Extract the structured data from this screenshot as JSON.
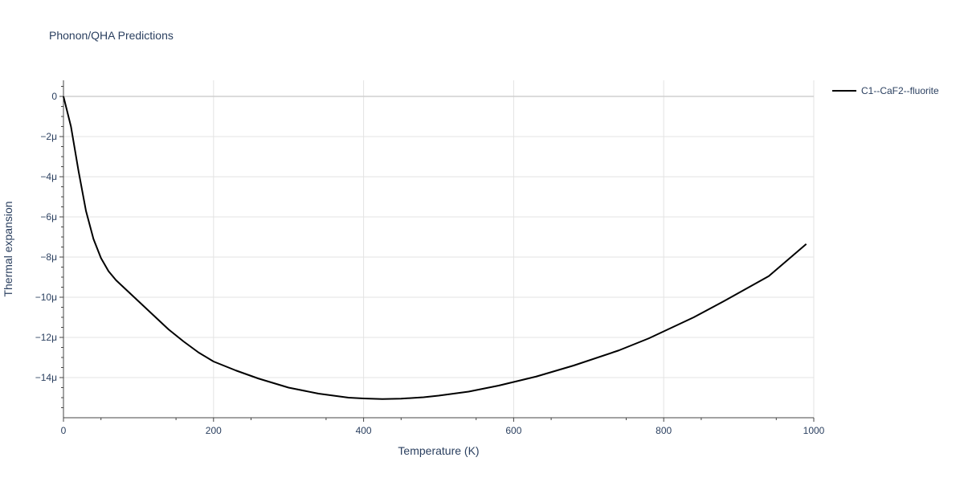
{
  "chart_data": {
    "type": "line",
    "title": "Phonon/QHA Predictions",
    "xlabel": "Temperature (K)",
    "ylabel": "Thermal expansion",
    "xlim": [
      0,
      1000
    ],
    "ylim": [
      -16,
      0.8
    ],
    "x_ticks": [
      0,
      200,
      400,
      600,
      800,
      1000
    ],
    "x_tick_labels": [
      "0",
      "200",
      "400",
      "600",
      "800",
      "1000"
    ],
    "y_ticks": [
      0,
      -2,
      -4,
      -6,
      -8,
      -10,
      -12,
      -14
    ],
    "y_tick_labels": [
      "0",
      "−2μ",
      "−4μ",
      "−6μ",
      "−8μ",
      "−10μ",
      "−12μ",
      "−14μ"
    ],
    "y_unit_scale": "μ (×1e-6)",
    "grid": true,
    "legend_position": "top-right outside",
    "series": [
      {
        "name": "C1--CaF2--fluorite",
        "color": "#000000",
        "x": [
          0,
          10,
          20,
          30,
          40,
          50,
          60,
          70,
          80,
          100,
          120,
          140,
          160,
          180,
          200,
          230,
          260,
          300,
          340,
          380,
          400,
          425,
          450,
          480,
          500,
          540,
          580,
          630,
          680,
          740,
          780,
          840,
          880,
          940,
          990
        ],
        "y": [
          0,
          -1.5,
          -3.7,
          -5.7,
          -7.1,
          -8.05,
          -8.7,
          -9.15,
          -9.5,
          -10.2,
          -10.9,
          -11.6,
          -12.2,
          -12.75,
          -13.2,
          -13.65,
          -14.05,
          -14.5,
          -14.8,
          -15.0,
          -15.04,
          -15.07,
          -15.05,
          -14.98,
          -14.9,
          -14.7,
          -14.4,
          -13.95,
          -13.4,
          -12.65,
          -12.05,
          -11.0,
          -10.2,
          -8.95,
          -7.35
        ]
      }
    ]
  }
}
